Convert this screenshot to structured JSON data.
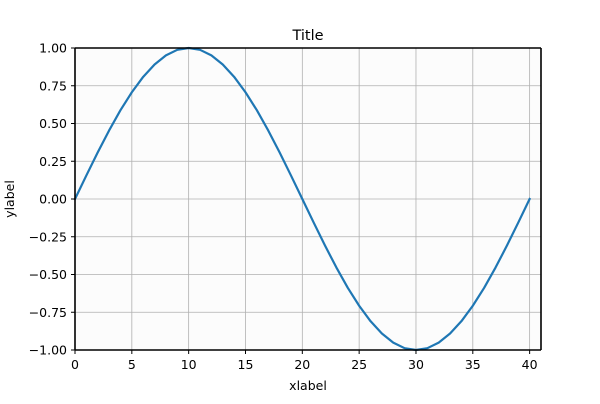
{
  "chart_data": {
    "type": "line",
    "title": "Title",
    "xlabel": "xlabel",
    "ylabel": "ylabel",
    "xlim": [
      0,
      41
    ],
    "ylim": [
      -1.0,
      1.0
    ],
    "grid": true,
    "x_ticks": [
      0,
      5,
      10,
      15,
      20,
      25,
      30,
      35,
      40
    ],
    "y_ticks": [
      -1.0,
      -0.75,
      -0.5,
      -0.25,
      0.0,
      0.25,
      0.5,
      0.75,
      1.0
    ],
    "x_tick_labels": [
      "0",
      "5",
      "10",
      "15",
      "20",
      "25",
      "30",
      "35",
      "40"
    ],
    "y_tick_labels": [
      "−1.00",
      "−0.75",
      "−0.50",
      "−0.25",
      "0.00",
      "0.25",
      "0.50",
      "0.75",
      "1.00"
    ],
    "series": [
      {
        "color": "#1f77b4",
        "x": [
          0,
          1,
          2,
          3,
          4,
          5,
          6,
          7,
          8,
          9,
          10,
          11,
          12,
          13,
          14,
          15,
          16,
          17,
          18,
          19,
          20,
          21,
          22,
          23,
          24,
          25,
          26,
          27,
          28,
          29,
          30,
          31,
          32,
          33,
          34,
          35,
          36,
          37,
          38,
          39,
          40
        ],
        "y": [
          0.0,
          0.156,
          0.309,
          0.454,
          0.588,
          0.707,
          0.809,
          0.891,
          0.951,
          0.988,
          1.0,
          0.988,
          0.951,
          0.891,
          0.809,
          0.707,
          0.588,
          0.454,
          0.309,
          0.156,
          0.0,
          -0.156,
          -0.309,
          -0.454,
          -0.588,
          -0.707,
          -0.809,
          -0.891,
          -0.951,
          -0.988,
          -1.0,
          -0.988,
          -0.951,
          -0.891,
          -0.809,
          -0.707,
          -0.588,
          -0.454,
          -0.309,
          -0.156,
          0.0
        ]
      }
    ],
    "colors": {
      "plot_background": "#fcfcfc",
      "grid": "#b0b0b0",
      "axes": "#000000"
    }
  }
}
